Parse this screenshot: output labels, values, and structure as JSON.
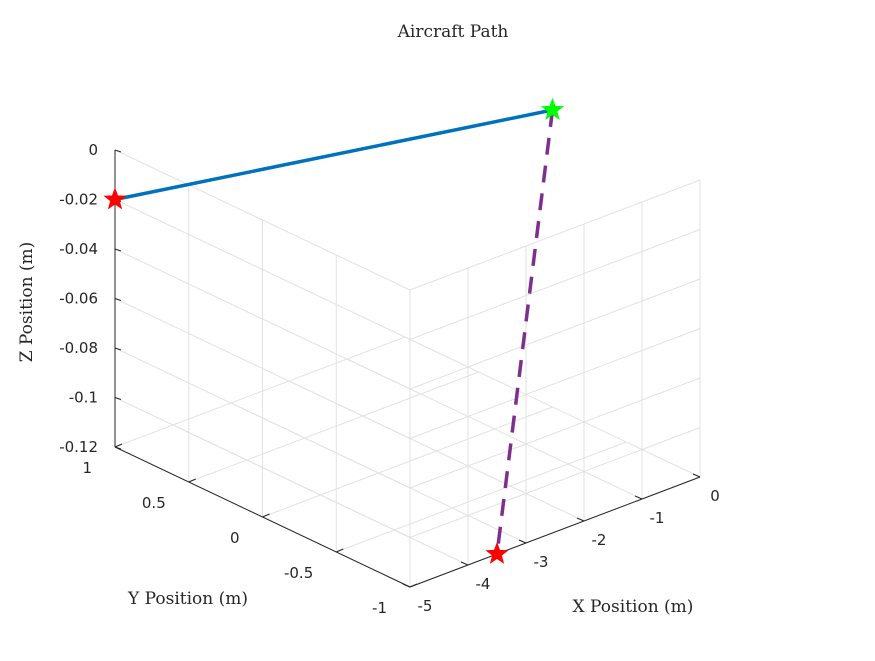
{
  "chart_data": {
    "type": "line3d",
    "title": "Aircraft Path",
    "xlabel": "X Position (m)",
    "ylabel": "Y Position (m)",
    "zlabel": "Z Position (m)",
    "xlim": [
      -5,
      0
    ],
    "ylim": [
      -1,
      1
    ],
    "zlim": [
      -0.12,
      0
    ],
    "grid": true,
    "x_ticks": [
      "-5",
      "-4",
      "-3",
      "-2",
      "-1",
      "0"
    ],
    "y_ticks": [
      "-1",
      "-0.5",
      "0",
      "0.5",
      "1"
    ],
    "z_ticks": [
      "-0.12",
      "-0.1",
      "-0.08",
      "-0.06",
      "-0.04",
      "-0.02",
      "0"
    ],
    "series": [
      {
        "style": "solid",
        "color": "#0072BD",
        "points": [
          {
            "x": -5,
            "y": 1,
            "z": -0.02
          },
          {
            "x": 0,
            "y": 0,
            "z": 0
          }
        ]
      },
      {
        "style": "dashed",
        "color": "#7E2F8E",
        "points": [
          {
            "x": 0,
            "y": 0,
            "z": 0
          },
          {
            "x": -3.5,
            "y": -1,
            "z": -0.12
          }
        ]
      }
    ],
    "markers": [
      {
        "shape": "star",
        "color": "#FF0000",
        "x": -5,
        "y": 1,
        "z": -0.02
      },
      {
        "shape": "star",
        "color": "#00FF00",
        "x": 0,
        "y": 0,
        "z": 0
      },
      {
        "shape": "star",
        "color": "#FF0000",
        "x": -3.5,
        "y": -1,
        "z": -0.12
      }
    ]
  }
}
